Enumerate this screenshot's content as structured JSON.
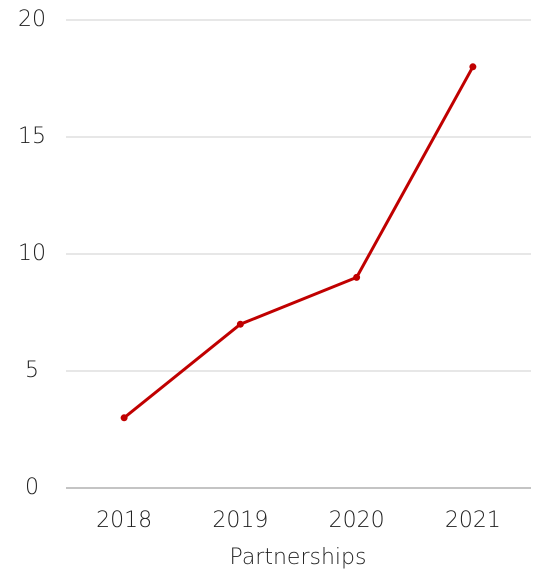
{
  "chart_data": {
    "type": "line",
    "x_label": "Partnerships",
    "categories": [
      "2018",
      "2019",
      "2020",
      "2021"
    ],
    "series": [
      {
        "color": "#c00000",
        "values": [
          3,
          7,
          9,
          18
        ]
      }
    ],
    "ylim": [
      0,
      20
    ],
    "yticks": [
      0,
      5,
      10,
      15,
      20
    ],
    "grid": true
  }
}
